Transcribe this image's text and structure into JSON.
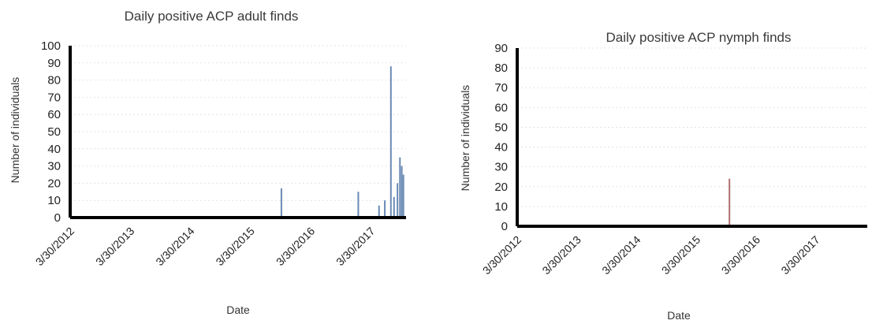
{
  "chart_data": [
    {
      "type": "bar",
      "title": "Daily positive ACP adult finds",
      "xlabel": "Date",
      "ylabel": "Number of individuals",
      "ylim": [
        0,
        100
      ],
      "yticks": [
        "0",
        "10",
        "20",
        "30",
        "40",
        "50",
        "60",
        "70",
        "80",
        "90",
        "100"
      ],
      "xticks": [
        "3/30/2012",
        "3/30/2013",
        "3/30/2014",
        "3/30/2015",
        "3/30/2016",
        "3/30/2017"
      ],
      "grid": true,
      "series_color": "#6a8ab5",
      "points": [
        {
          "x": "2015-09-05",
          "y": 17
        },
        {
          "x": "2016-12-15",
          "y": 15
        },
        {
          "x": "2017-04-20",
          "y": 7
        },
        {
          "x": "2017-05-25",
          "y": 10
        },
        {
          "x": "2017-07-01",
          "y": 88
        },
        {
          "x": "2017-07-20",
          "y": 12
        },
        {
          "x": "2017-08-10",
          "y": 20
        },
        {
          "x": "2017-08-25",
          "y": 35
        },
        {
          "x": "2017-09-05",
          "y": 30
        },
        {
          "x": "2017-09-15",
          "y": 25
        }
      ]
    },
    {
      "type": "bar",
      "title": "Daily positive ACP nymph finds",
      "xlabel": "Date",
      "ylabel": "Number of individuals",
      "ylim": [
        0,
        90
      ],
      "yticks": [
        "0",
        "10",
        "20",
        "30",
        "40",
        "50",
        "60",
        "70",
        "80",
        "90"
      ],
      "xticks": [
        "3/30/2012",
        "3/30/2013",
        "3/30/2014",
        "3/30/2015",
        "3/30/2016",
        "3/30/2017"
      ],
      "grid": true,
      "series_color": "#b07070",
      "points": [
        {
          "x": "2015-09-20",
          "y": 24
        }
      ]
    }
  ]
}
